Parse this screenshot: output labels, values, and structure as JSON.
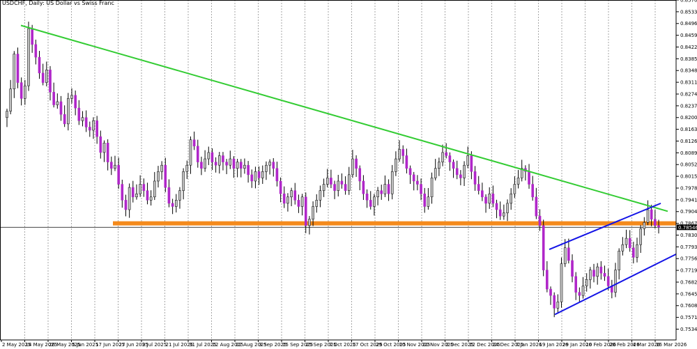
{
  "chart_data": {
    "type": "candlestick",
    "title": "USDCHF, Daily: US Dollar vs Swiss Franc",
    "colors": {
      "bull": "#c0c0c0",
      "bear": "#b026c9",
      "wick": "#000000",
      "frame": "#000000",
      "grid": "#808080",
      "support": "#f48a1c",
      "downtrend": "#33cc33",
      "channel": "#1414e6",
      "price_label_bg": "#000000",
      "price_label_text": "#ffffff"
    },
    "y_axis": {
      "min": 0.75,
      "max": 0.857,
      "ticks": [
        "0.85700",
        "0.85330",
        "0.84960",
        "0.84590",
        "0.84220",
        "0.83850",
        "0.83480",
        "0.83110",
        "0.82740",
        "0.82370",
        "0.82000",
        "0.81630",
        "0.81260",
        "0.80890",
        "0.80520",
        "0.80150",
        "0.79780",
        "0.79410",
        "0.79040",
        "0.78670",
        "0.78300",
        "0.77930",
        "0.77560",
        "0.77190",
        "0.76820",
        "0.76450",
        "0.76080",
        "0.75710",
        "0.75340"
      ]
    },
    "x_axis": {
      "labels": [
        "2 May 2025",
        "14 May 2025",
        "26 May 2025",
        "5 Jun 2025",
        "17 Jun 2025",
        "27 Jun 2025",
        "9 Jul 2025",
        "21 Jul 2025",
        "31 Jul 2025",
        "12 Aug 2025",
        "22 Aug 2025",
        "3 Sep 2025",
        "15 Sep 2025",
        "25 Sep 2025",
        "7 Oct 2025",
        "17 Oct 2025",
        "29 Oct 2025",
        "10 Nov 2025",
        "20 Nov 2025",
        "2 Dec 2025",
        "12 Dec 2025",
        "24 Dec 2025",
        "7 Jan 2026",
        "19 Jan 2026",
        "29 Jan 2026",
        "10 Feb 2026",
        "20 Feb 2026",
        "4 Mar 2026",
        "16 Mar 2026"
      ]
    },
    "current_price": "0.78546",
    "ohlc_close_path": [
      0.822,
      0.829,
      0.84,
      0.831,
      0.826,
      0.83,
      0.848,
      0.843,
      0.839,
      0.834,
      0.831,
      0.835,
      0.828,
      0.824,
      0.825,
      0.821,
      0.818,
      0.826,
      0.827,
      0.823,
      0.819,
      0.82,
      0.817,
      0.816,
      0.819,
      0.814,
      0.809,
      0.812,
      0.806,
      0.804,
      0.805,
      0.799,
      0.794,
      0.791,
      0.798,
      0.795,
      0.796,
      0.799,
      0.797,
      0.794,
      0.795,
      0.8,
      0.803,
      0.805,
      0.798,
      0.793,
      0.792,
      0.794,
      0.797,
      0.803,
      0.805,
      0.813,
      0.811,
      0.806,
      0.804,
      0.807,
      0.809,
      0.806,
      0.805,
      0.808,
      0.806,
      0.805,
      0.807,
      0.804,
      0.806,
      0.804,
      0.805,
      0.802,
      0.8,
      0.803,
      0.801,
      0.803,
      0.805,
      0.806,
      0.804,
      0.8,
      0.796,
      0.793,
      0.795,
      0.797,
      0.794,
      0.792,
      0.795,
      0.786,
      0.788,
      0.792,
      0.794,
      0.797,
      0.799,
      0.801,
      0.799,
      0.797,
      0.8,
      0.799,
      0.797,
      0.802,
      0.807,
      0.804,
      0.8,
      0.796,
      0.794,
      0.792,
      0.795,
      0.797,
      0.796,
      0.799,
      0.796,
      0.803,
      0.807,
      0.81,
      0.808,
      0.804,
      0.802,
      0.8,
      0.799,
      0.796,
      0.792,
      0.795,
      0.801,
      0.804,
      0.806,
      0.809,
      0.808,
      0.806,
      0.804,
      0.802,
      0.801,
      0.805,
      0.808,
      0.803,
      0.799,
      0.797,
      0.795,
      0.793,
      0.796,
      0.793,
      0.791,
      0.789,
      0.79,
      0.793,
      0.796,
      0.799,
      0.801,
      0.804,
      0.803,
      0.799,
      0.795,
      0.789,
      0.786,
      0.772,
      0.766,
      0.764,
      0.76,
      0.762,
      0.774,
      0.779,
      0.775,
      0.77,
      0.765,
      0.764,
      0.767,
      0.769,
      0.772,
      0.77,
      0.773,
      0.771,
      0.77,
      0.767,
      0.765,
      0.772,
      0.778,
      0.78,
      0.782,
      0.779,
      0.776,
      0.78,
      0.785,
      0.787,
      0.791,
      0.788,
      0.786,
      0.7855
    ]
  }
}
